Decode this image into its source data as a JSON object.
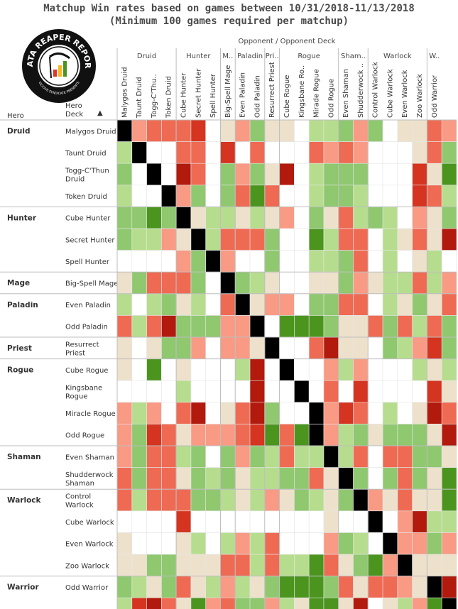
{
  "title": "Matchup Win rates based on games between 10/31/2018-11/13/2018",
  "subtitle": "(Minimum 100 games required per matchup)",
  "logo": {
    "top_text": "DATA REAPER REPORT",
    "bottom_text": "VICIOUS SYNDICATE PRESENTS"
  },
  "headers": {
    "opponent": "Opponent / Opponent Deck",
    "hero": "Hero",
    "deck": "Hero Deck",
    "sort_icon": "sort-ascending-icon"
  },
  "colors": {
    "0": "#ffffff",
    "1": "#b6dd8e",
    "2": "#8fc86f",
    "3": "#4b951f",
    "4": "#ede1cb",
    "5": "#f89a84",
    "6": "#ef6a53",
    "7": "#d43420",
    "8": "#b11a0c",
    "9": "#000000"
  },
  "chart_data": {
    "type": "heatmap",
    "title": "Matchup Win rates based on games between 10/31/2018-11/13/2018",
    "subtitle": "(Minimum 100 games required per matchup)",
    "heroes": [
      {
        "name": "Druid",
        "short": "Druid",
        "decks": [
          "Malygos Druid",
          "Taunt Druid",
          "Togg-C'Thun Druid",
          "Token Druid"
        ],
        "labels": [
          [
            "Malygos Druid"
          ],
          [
            "Taunt Druid"
          ],
          [
            "Togg-C'Thun",
            "Druid"
          ],
          [
            "Token Druid"
          ]
        ],
        "col_labels": [
          "Malygos Druid",
          "Taunt Druid",
          "Togg-C'Thu..",
          "Token Druid"
        ]
      },
      {
        "name": "Hunter",
        "short": "Hunter",
        "decks": [
          "Cube Hunter",
          "Secret Hunter",
          "Spell Hunter"
        ],
        "labels": [
          [
            "Cube Hunter"
          ],
          [
            "Secret Hunter"
          ],
          [
            "Spell Hunter"
          ]
        ],
        "col_labels": [
          "Cube Hunter",
          "Secret Hunter",
          "Spell Hunter"
        ]
      },
      {
        "name": "Mage",
        "short": "M..",
        "decks": [
          "Big-Spell Mage"
        ],
        "labels": [
          [
            "Big-Spell Mage"
          ]
        ],
        "col_labels": [
          "Big-Spell Mage"
        ]
      },
      {
        "name": "Paladin",
        "short": "Paladin",
        "decks": [
          "Even Paladin",
          "Odd Paladin"
        ],
        "labels": [
          [
            "Even Paladin"
          ],
          [
            "Odd Paladin"
          ]
        ],
        "col_labels": [
          "Even Paladin",
          "Odd Paladin"
        ]
      },
      {
        "name": "Priest",
        "short": "Pri..",
        "decks": [
          "Resurrect Priest"
        ],
        "labels": [
          [
            "Resurrect",
            "Priest"
          ]
        ],
        "col_labels": [
          "Resurrect Priest"
        ]
      },
      {
        "name": "Rogue",
        "short": "Rogue",
        "decks": [
          "Cube Rogue",
          "Kingsbane Rogue",
          "Miracle Rogue",
          "Odd Rogue"
        ],
        "labels": [
          [
            "Cube Rogue"
          ],
          [
            "Kingsbane",
            "Rogue"
          ],
          [
            "Miracle Rogue"
          ],
          [
            "Odd Rogue"
          ]
        ],
        "col_labels": [
          "Cube Rogue",
          "Kingsbane Ro..",
          "Mirade Rogue",
          "Odd Rogue"
        ]
      },
      {
        "name": "Shaman",
        "short": "Sham..",
        "decks": [
          "Even Shaman",
          "Shudderwock Shaman"
        ],
        "labels": [
          [
            "Even Shaman"
          ],
          [
            "Shudderwock",
            "Shaman"
          ]
        ],
        "col_labels": [
          "Even Shaman",
          "Shudderwock .."
        ]
      },
      {
        "name": "Warlock",
        "short": "Warlock",
        "decks": [
          "Control Warlock",
          "Cube Warlock",
          "Even Warlock",
          "Zoo Warlock"
        ],
        "labels": [
          [
            "Control",
            "Warlock"
          ],
          [
            "Cube Warlock"
          ],
          [
            "Even Warlock"
          ],
          [
            "Zoo Warlock"
          ]
        ],
        "col_labels": [
          "Control Warlock",
          "Cube Warlock",
          "Even Warlock",
          "Zoo Warlock"
        ]
      },
      {
        "name": "Warrior",
        "short": "W..",
        "decks": [
          "Odd Warrior"
        ],
        "labels": [
          [
            "Odd Warrior"
          ]
        ],
        "col_labels": [
          "Odd Warrior"
        ]
      }
    ],
    "color_scale_note": "0=no data, 1-3 favored (light to dark green), 4 even, 5-8 unfavored (light to dark red), 9 mirror",
    "matrix": [
      [
        9,
        5,
        6,
        6,
        6,
        7,
        0,
        4,
        5,
        2,
        4,
        4,
        0,
        1,
        1,
        2,
        5,
        2,
        0,
        4,
        4,
        6,
        5
      ],
      [
        1,
        9,
        0,
        0,
        6,
        6,
        0,
        7,
        0,
        6,
        0,
        0,
        0,
        6,
        5,
        6,
        5,
        0,
        0,
        0,
        4,
        6,
        2
      ],
      [
        2,
        0,
        9,
        0,
        8,
        6,
        0,
        2,
        5,
        2,
        4,
        8,
        0,
        1,
        2,
        2,
        2,
        0,
        0,
        0,
        7,
        4,
        3
      ],
      [
        1,
        0,
        0,
        9,
        5,
        2,
        0,
        2,
        6,
        3,
        6,
        0,
        0,
        1,
        2,
        2,
        1,
        0,
        0,
        0,
        7,
        6,
        1
      ],
      [
        2,
        2,
        3,
        2,
        9,
        4,
        1,
        1,
        4,
        1,
        4,
        5,
        0,
        2,
        4,
        6,
        1,
        2,
        1,
        0,
        5,
        4,
        2
      ],
      [
        2,
        1,
        1,
        5,
        4,
        9,
        1,
        6,
        6,
        6,
        2,
        0,
        0,
        3,
        1,
        6,
        6,
        0,
        1,
        4,
        6,
        4,
        8
      ],
      [
        0,
        0,
        0,
        0,
        5,
        2,
        9,
        5,
        0,
        0,
        2,
        0,
        0,
        1,
        1,
        2,
        6,
        0,
        1,
        0,
        4,
        1,
        0
      ],
      [
        4,
        2,
        6,
        6,
        6,
        2,
        0,
        9,
        2,
        1,
        4,
        0,
        0,
        4,
        4,
        2,
        5,
        4,
        1,
        1,
        6,
        1,
        5
      ],
      [
        1,
        0,
        1,
        2,
        4,
        1,
        0,
        6,
        9,
        4,
        5,
        5,
        0,
        2,
        2,
        6,
        6,
        0,
        1,
        4,
        2,
        4,
        6
      ],
      [
        6,
        1,
        6,
        8,
        2,
        2,
        2,
        5,
        5,
        9,
        0,
        3,
        3,
        3,
        2,
        4,
        4,
        6,
        2,
        6,
        1,
        6,
        2
      ],
      [
        4,
        0,
        4,
        2,
        2,
        5,
        0,
        5,
        5,
        4,
        9,
        0,
        0,
        6,
        8,
        4,
        4,
        0,
        2,
        1,
        5,
        7,
        2
      ],
      [
        4,
        0,
        3,
        0,
        4,
        0,
        0,
        0,
        1,
        8,
        0,
        9,
        0,
        0,
        5,
        1,
        5,
        0,
        0,
        0,
        1,
        4,
        1
      ],
      [
        0,
        0,
        0,
        0,
        1,
        0,
        0,
        0,
        0,
        8,
        0,
        0,
        9,
        0,
        6,
        0,
        7,
        0,
        0,
        0,
        0,
        7,
        4
      ],
      [
        5,
        1,
        5,
        0,
        6,
        8,
        0,
        4,
        6,
        8,
        2,
        0,
        0,
        9,
        5,
        7,
        6,
        0,
        1,
        0,
        4,
        8,
        6
      ],
      [
        5,
        2,
        7,
        6,
        4,
        5,
        5,
        5,
        6,
        7,
        3,
        6,
        3,
        9,
        5,
        1,
        2,
        4,
        2,
        2,
        2,
        4,
        8
      ],
      [
        5,
        2,
        6,
        6,
        1,
        2,
        0,
        2,
        5,
        2,
        1,
        6,
        1,
        1,
        9,
        1,
        6,
        0,
        6,
        6,
        2,
        2,
        4
      ],
      [
        6,
        2,
        6,
        6,
        4,
        2,
        1,
        2,
        4,
        1,
        1,
        2,
        2,
        6,
        4,
        9,
        2,
        0,
        2,
        6,
        2,
        4,
        3
      ],
      [
        6,
        1,
        6,
        6,
        6,
        2,
        2,
        1,
        4,
        1,
        5,
        4,
        2,
        1,
        4,
        2,
        9,
        5,
        4,
        6,
        4,
        4,
        3
      ],
      [
        0,
        0,
        0,
        0,
        7,
        0,
        0,
        0,
        0,
        0,
        0,
        0,
        0,
        0,
        4,
        0,
        0,
        9,
        0,
        5,
        8,
        1,
        1
      ],
      [
        4,
        0,
        0,
        0,
        4,
        1,
        0,
        1,
        5,
        1,
        6,
        0,
        0,
        0,
        5,
        2,
        1,
        0,
        9,
        5,
        5,
        2,
        5
      ],
      [
        4,
        4,
        2,
        2,
        4,
        4,
        4,
        6,
        6,
        1,
        6,
        1,
        1,
        3,
        6,
        4,
        2,
        3,
        5,
        9,
        4,
        4,
        4
      ],
      [
        2,
        1,
        4,
        2,
        6,
        4,
        1,
        5,
        1,
        4,
        2,
        3,
        3,
        3,
        2,
        6,
        4,
        6,
        6,
        5,
        4,
        9,
        8
      ],
      [
        1,
        7,
        8,
        6,
        4,
        3,
        5,
        6,
        2,
        2,
        5,
        1,
        4,
        3,
        3,
        4,
        8,
        0,
        4,
        1,
        5,
        3,
        9
      ]
    ]
  }
}
